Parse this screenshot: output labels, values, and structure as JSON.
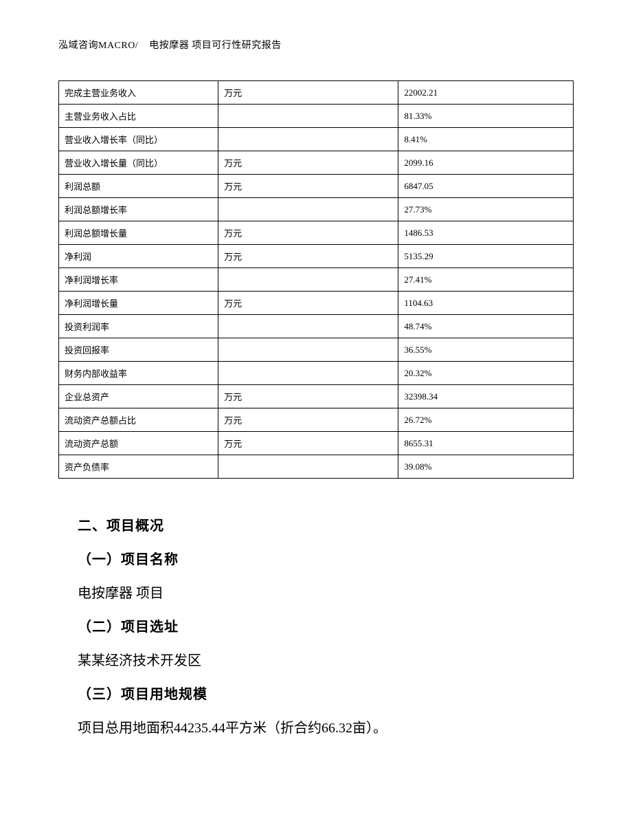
{
  "header": {
    "left": "泓域咨询MACRO/",
    "right": "电按摩器 项目可行性研究报告"
  },
  "table": {
    "rows": [
      {
        "label": "完成主营业务收入",
        "unit": "万元",
        "value": "22002.21"
      },
      {
        "label": "主营业务收入占比",
        "unit": "",
        "value": "81.33%"
      },
      {
        "label": "营业收入增长率（同比）",
        "unit": "",
        "value": "8.41%"
      },
      {
        "label": "营业收入增长量（同比）",
        "unit": "万元",
        "value": "2099.16"
      },
      {
        "label": "利润总额",
        "unit": "万元",
        "value": "6847.05"
      },
      {
        "label": "利润总额增长率",
        "unit": "",
        "value": "27.73%"
      },
      {
        "label": "利润总额增长量",
        "unit": "万元",
        "value": "1486.53"
      },
      {
        "label": "净利润",
        "unit": "万元",
        "value": "5135.29"
      },
      {
        "label": "净利润增长率",
        "unit": "",
        "value": "27.41%"
      },
      {
        "label": "净利润增长量",
        "unit": "万元",
        "value": "1104.63"
      },
      {
        "label": "投资利润率",
        "unit": "",
        "value": "48.74%"
      },
      {
        "label": "投资回报率",
        "unit": "",
        "value": "36.55%"
      },
      {
        "label": "财务内部收益率",
        "unit": "",
        "value": "20.32%"
      },
      {
        "label": "企业总资产",
        "unit": "万元",
        "value": "32398.34"
      },
      {
        "label": "流动资产总额占比",
        "unit": "万元",
        "value": "26.72%"
      },
      {
        "label": "流动资产总额",
        "unit": "万元",
        "value": "8655.31"
      },
      {
        "label": "资产负债率",
        "unit": "",
        "value": "39.08%"
      }
    ]
  },
  "body": {
    "section_title": "二、项目概况",
    "sub1_title": "（一）项目名称",
    "sub1_text": "电按摩器 项目",
    "sub2_title": "（二）项目选址",
    "sub2_text": "某某经济技术开发区",
    "sub3_title": "（三）项目用地规模",
    "sub3_text": "项目总用地面积44235.44平方米（折合约66.32亩）。"
  }
}
